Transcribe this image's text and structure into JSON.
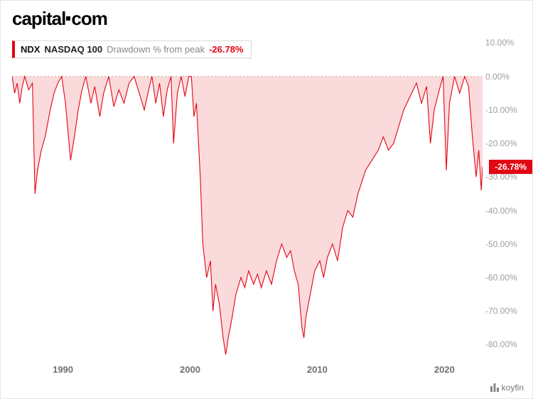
{
  "brand": {
    "pre": "capital",
    "post": "com"
  },
  "legend": {
    "ticker": "NDX",
    "name": "NASDAQ 100",
    "metric": "Drawdown % from peak",
    "value": "-26.78%"
  },
  "marker": {
    "label": "-26.78%",
    "value": -26.78
  },
  "footer": {
    "text": "koyfin"
  },
  "chart": {
    "type": "area",
    "line_color": "#e20613",
    "fill_color": "rgba(226,6,19,0.15)",
    "line_width": 1.1,
    "background_color": "#ffffff",
    "x": {
      "min": 1986,
      "max": 2023,
      "ticks": [
        1990,
        2000,
        2010,
        2020
      ]
    },
    "y": {
      "min": -85,
      "max": 12,
      "ticks": [
        10,
        0,
        -10,
        -20,
        -30,
        -40,
        -50,
        -60,
        -70,
        -80
      ],
      "tick_labels": [
        "10.00%",
        "0.00%",
        "-10.00%",
        "-20.00%",
        "-30.00%",
        "-40.00%",
        "-50.00%",
        "-60.00%",
        "-70.00%",
        "-80.00%"
      ]
    },
    "series": [
      [
        1986.0,
        0
      ],
      [
        1986.2,
        -5
      ],
      [
        1986.4,
        -2
      ],
      [
        1986.6,
        -8
      ],
      [
        1986.8,
        -3
      ],
      [
        1987.0,
        0
      ],
      [
        1987.3,
        -4
      ],
      [
        1987.6,
        -2
      ],
      [
        1987.8,
        -35
      ],
      [
        1988.0,
        -28
      ],
      [
        1988.3,
        -22
      ],
      [
        1988.6,
        -18
      ],
      [
        1989.0,
        -10
      ],
      [
        1989.3,
        -5
      ],
      [
        1989.6,
        -2
      ],
      [
        1989.9,
        0
      ],
      [
        1990.2,
        -8
      ],
      [
        1990.6,
        -25
      ],
      [
        1990.9,
        -18
      ],
      [
        1991.2,
        -10
      ],
      [
        1991.5,
        -4
      ],
      [
        1991.8,
        0
      ],
      [
        1992.2,
        -8
      ],
      [
        1992.5,
        -3
      ],
      [
        1992.9,
        -12
      ],
      [
        1993.2,
        -5
      ],
      [
        1993.6,
        0
      ],
      [
        1994.0,
        -9
      ],
      [
        1994.4,
        -4
      ],
      [
        1994.8,
        -8
      ],
      [
        1995.2,
        -2
      ],
      [
        1995.6,
        0
      ],
      [
        1996.0,
        -5
      ],
      [
        1996.4,
        -10
      ],
      [
        1996.8,
        -3
      ],
      [
        1997.0,
        0
      ],
      [
        1997.3,
        -8
      ],
      [
        1997.6,
        -2
      ],
      [
        1997.9,
        -12
      ],
      [
        1998.2,
        -4
      ],
      [
        1998.5,
        0
      ],
      [
        1998.7,
        -20
      ],
      [
        1999.0,
        -5
      ],
      [
        1999.3,
        0
      ],
      [
        1999.6,
        -6
      ],
      [
        1999.9,
        0
      ],
      [
        2000.1,
        0
      ],
      [
        2000.3,
        -12
      ],
      [
        2000.5,
        -8
      ],
      [
        2000.8,
        -30
      ],
      [
        2001.0,
        -50
      ],
      [
        2001.3,
        -60
      ],
      [
        2001.6,
        -55
      ],
      [
        2001.8,
        -70
      ],
      [
        2002.0,
        -62
      ],
      [
        2002.3,
        -68
      ],
      [
        2002.6,
        -78
      ],
      [
        2002.8,
        -83
      ],
      [
        2003.0,
        -78
      ],
      [
        2003.3,
        -72
      ],
      [
        2003.6,
        -65
      ],
      [
        2004.0,
        -60
      ],
      [
        2004.3,
        -63
      ],
      [
        2004.6,
        -58
      ],
      [
        2005.0,
        -62
      ],
      [
        2005.3,
        -59
      ],
      [
        2005.6,
        -63
      ],
      [
        2006.0,
        -58
      ],
      [
        2006.4,
        -62
      ],
      [
        2006.8,
        -55
      ],
      [
        2007.2,
        -50
      ],
      [
        2007.6,
        -54
      ],
      [
        2007.9,
        -52
      ],
      [
        2008.2,
        -58
      ],
      [
        2008.5,
        -62
      ],
      [
        2008.8,
        -75
      ],
      [
        2008.95,
        -78
      ],
      [
        2009.1,
        -72
      ],
      [
        2009.4,
        -66
      ],
      [
        2009.8,
        -58
      ],
      [
        2010.2,
        -55
      ],
      [
        2010.5,
        -60
      ],
      [
        2010.8,
        -54
      ],
      [
        2011.2,
        -50
      ],
      [
        2011.6,
        -55
      ],
      [
        2012.0,
        -45
      ],
      [
        2012.4,
        -40
      ],
      [
        2012.8,
        -42
      ],
      [
        2013.2,
        -35
      ],
      [
        2013.8,
        -28
      ],
      [
        2014.3,
        -25
      ],
      [
        2014.8,
        -22
      ],
      [
        2015.2,
        -18
      ],
      [
        2015.6,
        -22
      ],
      [
        2016.0,
        -20
      ],
      [
        2016.4,
        -15
      ],
      [
        2016.8,
        -10
      ],
      [
        2017.3,
        -6
      ],
      [
        2017.8,
        -2
      ],
      [
        2018.2,
        -8
      ],
      [
        2018.6,
        -3
      ],
      [
        2018.9,
        -20
      ],
      [
        2019.2,
        -10
      ],
      [
        2019.6,
        -4
      ],
      [
        2019.9,
        0
      ],
      [
        2020.15,
        -28
      ],
      [
        2020.4,
        -8
      ],
      [
        2020.8,
        0
      ],
      [
        2021.2,
        -5
      ],
      [
        2021.6,
        0
      ],
      [
        2021.9,
        -3
      ],
      [
        2022.2,
        -18
      ],
      [
        2022.5,
        -30
      ],
      [
        2022.7,
        -22
      ],
      [
        2022.9,
        -34
      ],
      [
        2023.0,
        -26.78
      ]
    ]
  }
}
